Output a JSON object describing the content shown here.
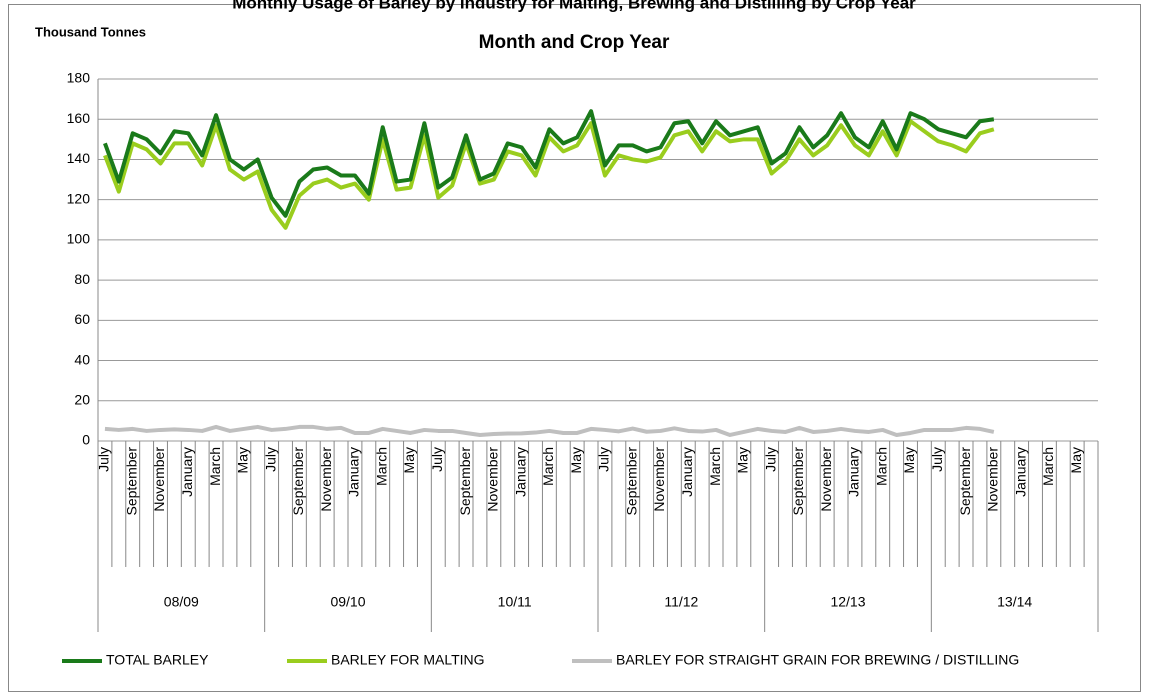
{
  "chart_data": {
    "type": "line",
    "title": "Monthly Usage of Barley by Industry for Malting, Brewing and Distilling by Crop Year",
    "subtitle": "Month and Crop Year",
    "y_label": "Thousand Tonnes",
    "categories": [
      "July",
      null,
      "September",
      null,
      "November",
      null,
      "January",
      null,
      "March",
      null,
      "May",
      null,
      "July",
      null,
      "September",
      null,
      "November",
      null,
      "January",
      null,
      "March",
      null,
      "May",
      null,
      "July",
      null,
      "September",
      null,
      "November",
      null,
      "January",
      null,
      "March",
      null,
      "May",
      null,
      "July",
      null,
      "September",
      null,
      "November",
      null,
      "January",
      null,
      "March",
      null,
      "May",
      null,
      "July",
      null,
      "September",
      null,
      "November",
      null,
      "January",
      null,
      "March",
      null,
      "May",
      null,
      "July",
      null,
      "September",
      null,
      "November",
      null,
      "January",
      null,
      "March",
      null,
      "May",
      null
    ],
    "groups": [
      "08/09",
      "09/10",
      "10/11",
      "11/12",
      "12/13",
      "13/14"
    ],
    "series": [
      {
        "name": "TOTAL BARLEY",
        "color": "#1a7a1a",
        "values": [
          148,
          129,
          153,
          150,
          143,
          154,
          153,
          142,
          162,
          140,
          135,
          140,
          121,
          112,
          129,
          135,
          136,
          132,
          132,
          123,
          156,
          129,
          130,
          158,
          126,
          131,
          152,
          130,
          133,
          148,
          146,
          136,
          155,
          148,
          151,
          164,
          137,
          147,
          147,
          144,
          146,
          158,
          159,
          148,
          159,
          152,
          154,
          156,
          138,
          143,
          156,
          146,
          152,
          163,
          151,
          146,
          159,
          145,
          163,
          160,
          155,
          153,
          151,
          159,
          160,
          null,
          null,
          null,
          null,
          null,
          null,
          null
        ]
      },
      {
        "name": "BARLEY FOR MALTING",
        "color": "#9acd1e",
        "values": [
          142,
          124,
          148,
          145,
          138,
          148,
          148,
          137,
          157,
          135,
          130,
          134,
          115,
          106,
          122,
          128,
          130,
          126,
          128,
          120,
          150,
          125,
          126,
          152,
          121,
          127,
          148,
          128,
          130,
          144,
          142,
          132,
          151,
          144,
          147,
          158,
          132,
          142,
          140,
          139,
          141,
          152,
          154,
          144,
          154,
          149,
          150,
          150,
          133,
          139,
          150,
          142,
          147,
          157,
          147,
          142,
          154,
          142,
          159,
          154,
          149,
          147,
          144,
          153,
          155,
          null,
          null,
          null,
          null,
          null,
          null,
          null
        ]
      },
      {
        "name": "BARLEY FOR STRAIGHT GRAIN FOR BREWING / DISTILLING",
        "color": "#bfbfbf",
        "values": [
          6,
          5.5,
          6,
          5,
          5.5,
          5.8,
          5.5,
          5,
          7,
          5,
          6,
          7,
          5.5,
          6,
          7,
          7,
          6,
          6.5,
          4,
          4,
          6,
          5,
          4,
          5.5,
          5,
          5,
          4,
          3,
          3.5,
          3.7,
          3.8,
          4.2,
          5,
          4,
          4,
          6,
          5.5,
          4.8,
          6.2,
          4.6,
          5,
          6.3,
          5,
          4.7,
          5.5,
          3,
          4.5,
          6,
          5,
          4.5,
          6.5,
          4.5,
          5,
          6,
          5,
          4.5,
          5.5,
          3,
          4,
          5.5,
          5.5,
          5.5,
          6.5,
          6,
          4.5,
          null,
          null,
          null,
          null,
          null,
          null,
          null
        ]
      }
    ],
    "ylim": [
      0,
      180
    ],
    "yticks": [
      0,
      20,
      40,
      60,
      80,
      100,
      120,
      140,
      160,
      180
    ],
    "grid": true,
    "legend": "bottom"
  }
}
